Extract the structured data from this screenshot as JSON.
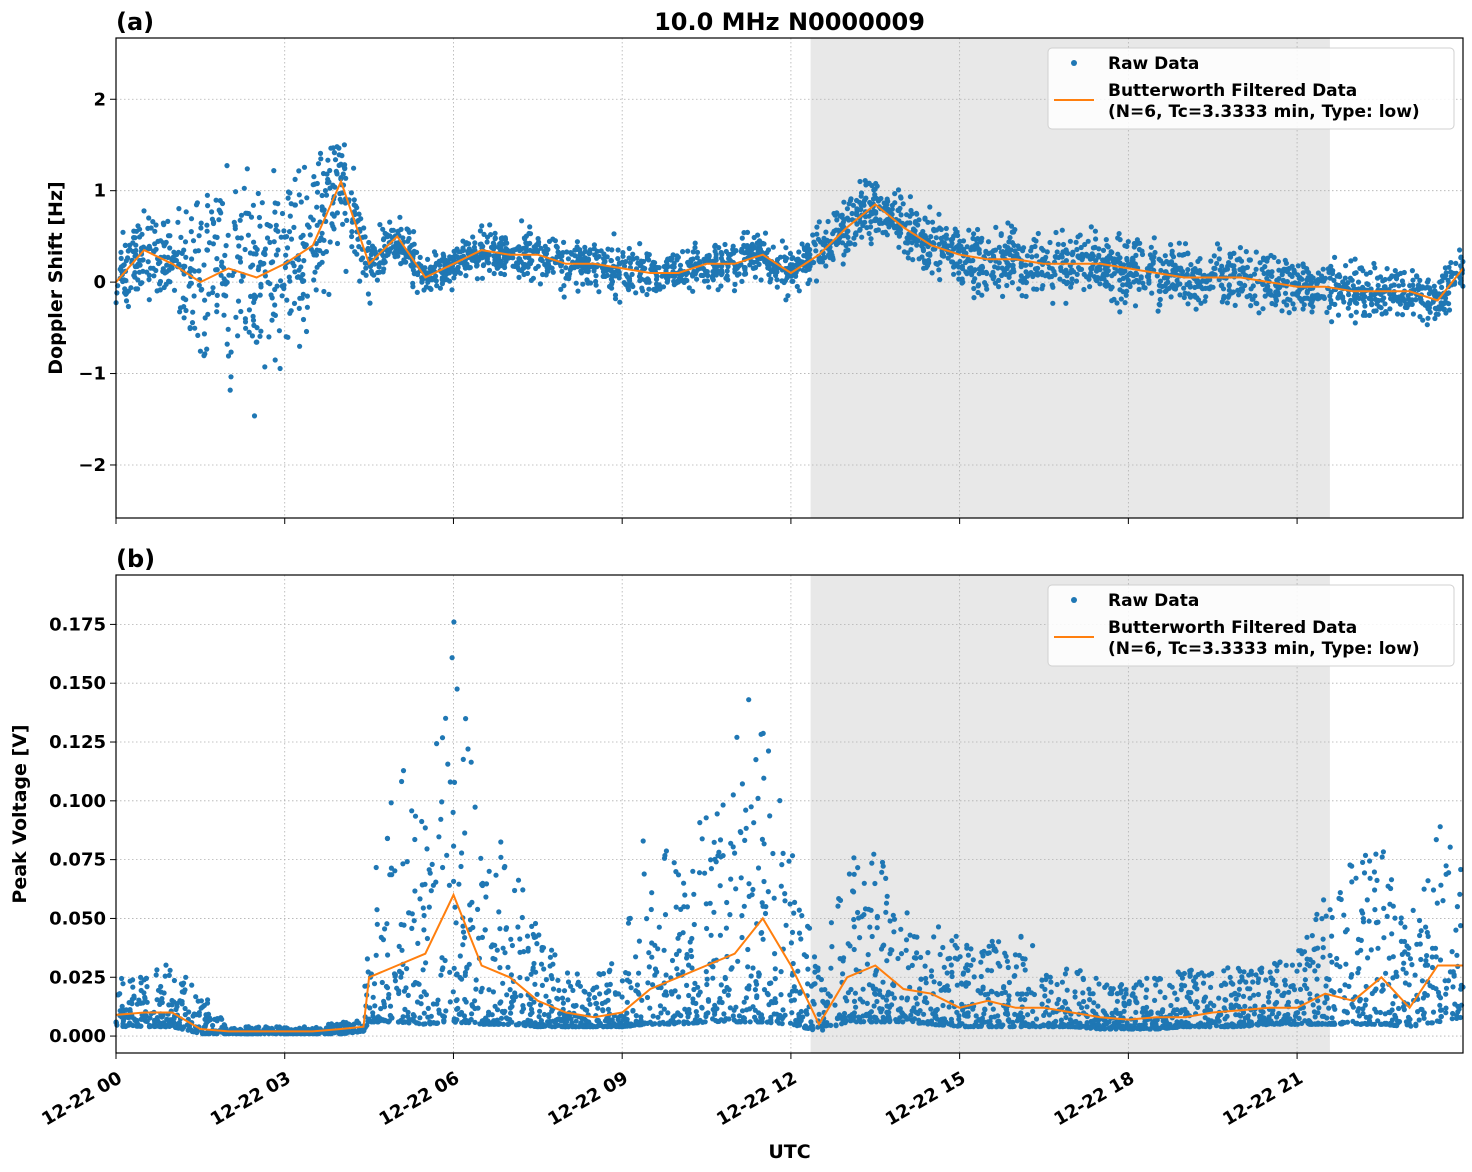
{
  "chart_data": [
    {
      "type": "scatter",
      "panel_label": "(a)",
      "title": "10.0 MHz N0000009",
      "xlabel": "",
      "ylabel": "Doppler Shift [Hz]",
      "ylim": [
        -2.58,
        2.67
      ],
      "yticks": [
        -2,
        -1,
        0,
        1,
        2
      ],
      "ytick_labels": [
        "−2",
        "−1",
        "0",
        "1",
        "2"
      ],
      "xlim": [
        "12-22 00:00",
        "12-22 23:57"
      ],
      "xticks": [
        "00:00",
        "03:00",
        "06:00",
        "09:00",
        "12:00",
        "15:00",
        "18:00",
        "21:00"
      ],
      "xtick_labels": [],
      "grid": true,
      "shaded_span": [
        "12:21",
        "21:35"
      ],
      "shade_color": "#e8e8e8",
      "legend": {
        "placement": "top-right",
        "entries": [
          "Raw Data",
          "Butterworth Filtered Data",
          "(N=6, Tc=3.3333 min, Type: low)"
        ]
      },
      "colors": {
        "raw": "#1f77b4",
        "filtered": "#ff7f0e"
      },
      "series": [
        {
          "name": "Butterworth Filtered Data (N=6, Tc=3.3333 min, Type: low)",
          "kind": "line",
          "time": [
            "00:00",
            "00:30",
            "01:00",
            "01:30",
            "02:00",
            "02:30",
            "03:00",
            "03:30",
            "04:00",
            "04:30",
            "05:00",
            "05:30",
            "06:00",
            "06:30",
            "07:00",
            "07:30",
            "08:00",
            "08:30",
            "09:00",
            "09:30",
            "10:00",
            "10:30",
            "11:00",
            "11:30",
            "12:00",
            "12:30",
            "13:00",
            "13:30",
            "14:00",
            "14:30",
            "15:00",
            "15:30",
            "16:00",
            "16:30",
            "17:00",
            "17:30",
            "18:00",
            "18:30",
            "19:00",
            "19:30",
            "20:00",
            "20:30",
            "21:00",
            "21:30",
            "22:00",
            "22:30",
            "23:00",
            "23:30",
            "23:57"
          ],
          "values": [
            0.0,
            0.35,
            0.2,
            0.0,
            0.15,
            0.05,
            0.2,
            0.4,
            1.1,
            0.2,
            0.5,
            0.05,
            0.2,
            0.35,
            0.3,
            0.3,
            0.2,
            0.2,
            0.15,
            0.1,
            0.1,
            0.2,
            0.2,
            0.3,
            0.1,
            0.3,
            0.6,
            0.85,
            0.6,
            0.4,
            0.3,
            0.25,
            0.25,
            0.2,
            0.2,
            0.2,
            0.15,
            0.1,
            0.05,
            0.05,
            0.05,
            0.0,
            -0.05,
            -0.05,
            -0.1,
            -0.1,
            -0.1,
            -0.2,
            0.15
          ]
        },
        {
          "name": "Raw Data",
          "kind": "scatter",
          "time_spread_note_free": true,
          "center": "same as filtered",
          "half_spread": [
            0.5,
            0.6,
            0.5,
            1.4,
            1.5,
            1.4,
            1.3,
            1.2,
            0.9,
            0.4,
            0.3,
            0.3,
            0.25,
            0.3,
            0.35,
            0.35,
            0.35,
            0.35,
            0.35,
            0.35,
            0.3,
            0.3,
            0.3,
            0.3,
            0.35,
            0.4,
            0.45,
            0.4,
            0.35,
            0.4,
            0.45,
            0.45,
            0.45,
            0.45,
            0.45,
            0.5,
            0.5,
            0.5,
            0.45,
            0.4,
            0.4,
            0.35,
            0.35,
            0.35,
            0.35,
            0.35,
            0.35,
            0.4,
            0.3
          ]
        }
      ]
    },
    {
      "type": "scatter",
      "panel_label": "(b)",
      "xlabel": "UTC",
      "ylabel": "Peak Voltage [V]",
      "ylim": [
        -0.0072,
        0.196
      ],
      "yticks": [
        0.0,
        0.025,
        0.05,
        0.075,
        0.1,
        0.125,
        0.15,
        0.175
      ],
      "ytick_labels": [
        "0.000",
        "0.025",
        "0.050",
        "0.075",
        "0.100",
        "0.125",
        "0.150",
        "0.175"
      ],
      "xlim": [
        "12-22 00:00",
        "12-22 23:57"
      ],
      "xticks": [
        "00:00",
        "03:00",
        "06:00",
        "09:00",
        "12:00",
        "15:00",
        "18:00",
        "21:00"
      ],
      "xtick_labels": [
        "12-22 00",
        "12-22 03",
        "12-22 06",
        "12-22 09",
        "12-22 12",
        "12-22 15",
        "12-22 18",
        "12-22 21"
      ],
      "grid": true,
      "shaded_span": [
        "12:21",
        "21:35"
      ],
      "shade_color": "#e8e8e8",
      "legend": {
        "placement": "top-right",
        "entries": [
          "Raw Data",
          "Butterworth Filtered Data",
          "(N=6, Tc=3.3333 min, Type: low)"
        ]
      },
      "colors": {
        "raw": "#1f77b4",
        "filtered": "#ff7f0e"
      },
      "series": [
        {
          "name": "Butterworth Filtered Data (N=6, Tc=3.3333 min, Type: low)",
          "kind": "line",
          "time": [
            "00:00",
            "00:30",
            "01:00",
            "01:30",
            "02:00",
            "02:30",
            "03:00",
            "03:30",
            "04:00",
            "04:24",
            "04:30",
            "05:00",
            "05:30",
            "06:00",
            "06:30",
            "07:00",
            "07:30",
            "08:00",
            "08:30",
            "09:00",
            "09:30",
            "10:00",
            "10:30",
            "11:00",
            "11:30",
            "12:00",
            "12:30",
            "13:00",
            "13:30",
            "14:00",
            "14:30",
            "15:00",
            "15:30",
            "16:00",
            "16:30",
            "17:00",
            "17:30",
            "18:00",
            "18:30",
            "19:00",
            "19:30",
            "20:00",
            "20:30",
            "21:00",
            "21:30",
            "22:00",
            "22:30",
            "23:00",
            "23:30",
            "23:57"
          ],
          "values": [
            0.009,
            0.01,
            0.01,
            0.003,
            0.002,
            0.002,
            0.002,
            0.002,
            0.003,
            0.004,
            0.025,
            0.03,
            0.035,
            0.06,
            0.03,
            0.025,
            0.015,
            0.01,
            0.008,
            0.01,
            0.02,
            0.025,
            0.03,
            0.035,
            0.05,
            0.03,
            0.005,
            0.025,
            0.03,
            0.02,
            0.018,
            0.012,
            0.015,
            0.012,
            0.012,
            0.01,
            0.008,
            0.007,
            0.008,
            0.008,
            0.01,
            0.011,
            0.012,
            0.012,
            0.018,
            0.015,
            0.025,
            0.012,
            0.03,
            0.03
          ]
        },
        {
          "name": "Raw Data",
          "kind": "scatter",
          "lower": [
            0.004,
            0.004,
            0.004,
            0.001,
            0.001,
            0.001,
            0.001,
            0.001,
            0.001,
            0.002,
            0.006,
            0.006,
            0.005,
            0.006,
            0.005,
            0.005,
            0.004,
            0.004,
            0.004,
            0.004,
            0.005,
            0.005,
            0.006,
            0.006,
            0.006,
            0.005,
            0.002,
            0.006,
            0.006,
            0.006,
            0.005,
            0.004,
            0.004,
            0.004,
            0.004,
            0.004,
            0.003,
            0.003,
            0.003,
            0.004,
            0.004,
            0.004,
            0.005,
            0.005,
            0.005,
            0.005,
            0.005,
            0.004,
            0.006,
            0.008
          ],
          "upper": [
            0.025,
            0.025,
            0.032,
            0.02,
            0.004,
            0.004,
            0.004,
            0.004,
            0.006,
            0.007,
            0.07,
            0.118,
            0.095,
            0.187,
            0.09,
            0.08,
            0.045,
            0.028,
            0.025,
            0.035,
            0.103,
            0.07,
            0.1,
            0.125,
            0.171,
            0.08,
            0.03,
            0.086,
            0.08,
            0.06,
            0.045,
            0.052,
            0.04,
            0.045,
            0.035,
            0.03,
            0.025,
            0.022,
            0.026,
            0.028,
            0.03,
            0.03,
            0.03,
            0.035,
            0.06,
            0.075,
            0.085,
            0.05,
            0.09,
            0.088
          ]
        }
      ]
    }
  ]
}
